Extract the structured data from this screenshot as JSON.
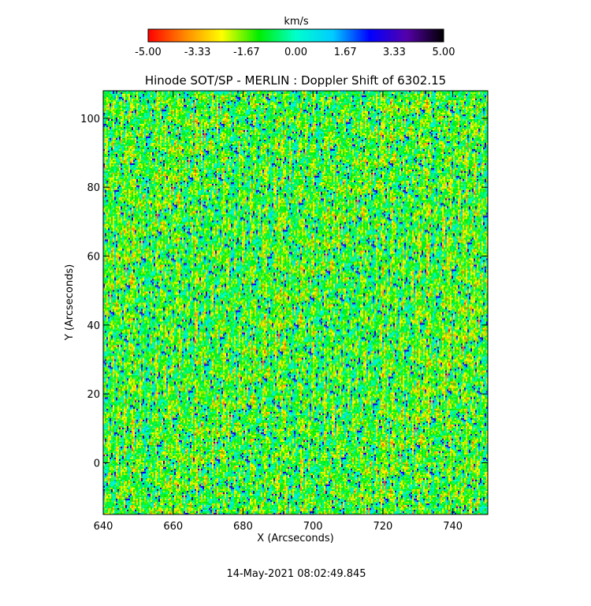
{
  "chart_data": {
    "type": "heatmap",
    "title": "Hinode SOT/SP - MERLIN : Doppler Shift of 6302.15",
    "xlabel": "X (Arcseconds)",
    "ylabel": "Y (Arcseconds)",
    "xlim": [
      640,
      750
    ],
    "ylim": [
      -15,
      108
    ],
    "x_ticks": [
      640,
      660,
      680,
      700,
      720,
      740
    ],
    "x_tick_labels": [
      "640",
      "660",
      "680",
      "700",
      "720",
      "740"
    ],
    "y_ticks": [
      0,
      20,
      40,
      60,
      80,
      100
    ],
    "y_tick_labels": [
      "0",
      "20",
      "40",
      "60",
      "80",
      "100"
    ],
    "colorbar": {
      "unit_label": "km/s",
      "range": [
        -5.0,
        5.0
      ],
      "ticks": [
        -5.0,
        -3.33,
        -1.67,
        0.0,
        1.67,
        3.33,
        5.0
      ],
      "tick_labels": [
        "-5.00",
        "-3.33",
        "-1.67",
        "0.00",
        "1.67",
        "3.33",
        "5.00"
      ],
      "colors": [
        "#ff0000",
        "#ff8800",
        "#ffff00",
        "#00ee00",
        "#00ffcc",
        "#00ccff",
        "#0000ff",
        "#5500aa",
        "#000000"
      ]
    },
    "timestamp": "14-May-2021 08:02:49.845",
    "grid": false
  }
}
